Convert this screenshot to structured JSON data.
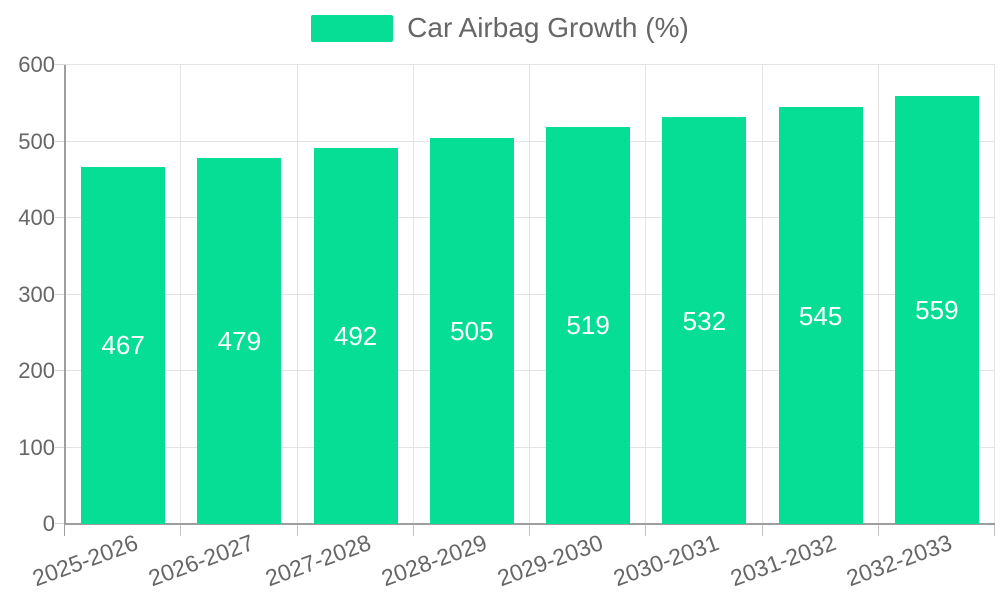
{
  "legend": {
    "label": "Car Airbag Growth (%)",
    "swatch_color": "#05de94"
  },
  "chart_data": {
    "type": "bar",
    "title": "Car Airbag Growth (%)",
    "categories": [
      "2025-2026",
      "2026-2027",
      "2027-2028",
      "2028-2029",
      "2029-2030",
      "2030-2031",
      "2031-2032",
      "2032-2033"
    ],
    "values": [
      467,
      479,
      492,
      505,
      519,
      532,
      545,
      559
    ],
    "xlabel": "",
    "ylabel": "",
    "ylim": [
      0,
      600
    ],
    "ytick_interval": 100,
    "ytick_labels": [
      "0",
      "100",
      "200",
      "300",
      "400",
      "500",
      "600"
    ],
    "grid": true,
    "legend_position": "top",
    "value_labels": "centered-inside-bars",
    "colors": {
      "bar": "#05de94",
      "value_label": "#ffffff",
      "axis_line": "#9e9e9e",
      "grid_line": "#e3e3e3",
      "tick_text": "#666666",
      "legend_text": "#666666"
    }
  }
}
